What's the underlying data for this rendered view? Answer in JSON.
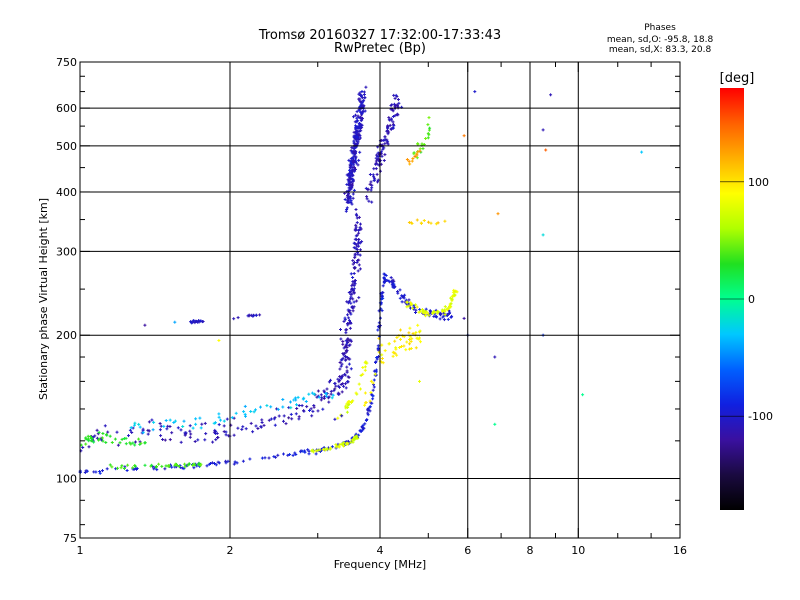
{
  "header": {
    "title": "Tromsø 20160327 17:32:00-17:33:43",
    "subtitle": "RwPretec (Bp)"
  },
  "stats": {
    "title": "Phases",
    "line_o": "mean, sd,O: -95.8, 18.8",
    "line_x": "mean, sd,X:  83.3, 20.8"
  },
  "chart_data": {
    "type": "scatter",
    "title": "Tromsø 20160327 17:32:00-17:33:43",
    "subtitle": "RwPretec (Bp)",
    "xlabel": "Frequency [MHz]",
    "ylabel": "Stationary phase Virtual Height [km]",
    "x_scale": "log",
    "y_scale": "log",
    "xlim": [
      1,
      16
    ],
    "ylim": [
      75,
      750
    ],
    "x_ticks": [
      1,
      2,
      4,
      6,
      8,
      10,
      16
    ],
    "x_tick_labels": [
      "1",
      "2",
      "4",
      "6",
      "8",
      "10",
      "16"
    ],
    "x_minor_ticks": [
      3,
      5,
      7,
      9,
      12,
      14
    ],
    "y_ticks": [
      75,
      100,
      200,
      300,
      400,
      500,
      600,
      750
    ],
    "y_tick_labels": [
      "75",
      "100",
      "200",
      "300",
      "400",
      "500",
      "600",
      "750"
    ],
    "y_minor_ticks": [
      80,
      90,
      120,
      140,
      160,
      180,
      250,
      350,
      450,
      550,
      650,
      700
    ],
    "grid": true,
    "colorbar": {
      "label": "[deg]",
      "range": [
        -180,
        180
      ],
      "ticks": [
        100,
        0,
        -100
      ],
      "tick_labels": [
        "100",
        "0",
        "-100"
      ],
      "colors": [
        "#000000",
        "#1a0a40",
        "#3a10a0",
        "#1020e0",
        "#0060ff",
        "#00c8ff",
        "#00ff90",
        "#20e020",
        "#b0ff00",
        "#ffff00",
        "#ffb000",
        "#ff6000",
        "#ff0000"
      ]
    },
    "series": [
      {
        "kind": "trace",
        "points": [
          [
            1.0,
            104
          ],
          [
            1.1,
            104
          ],
          [
            1.25,
            105
          ],
          [
            1.45,
            105
          ],
          [
            1.6,
            106
          ],
          [
            1.8,
            107
          ],
          [
            2.0,
            108
          ],
          [
            2.3,
            110
          ],
          [
            2.6,
            112
          ],
          [
            2.9,
            114
          ],
          [
            3.1,
            115
          ],
          [
            3.3,
            117
          ],
          [
            3.5,
            120
          ],
          [
            3.65,
            125
          ],
          [
            3.75,
            132
          ],
          [
            3.85,
            145
          ],
          [
            3.92,
            165
          ],
          [
            3.97,
            190
          ],
          [
            4.0,
            215
          ],
          [
            4.05,
            250
          ],
          [
            4.1,
            270
          ]
        ],
        "phase": -95,
        "spread_km": 2,
        "count": 200,
        "scatter": 0.01
      },
      {
        "kind": "trace",
        "points": [
          [
            1.15,
            106
          ],
          [
            1.4,
            106
          ],
          [
            1.6,
            107
          ],
          [
            1.75,
            107
          ]
        ],
        "phase": 35,
        "spread_km": 1.5,
        "count": 40,
        "scatter": 0.01
      },
      {
        "kind": "trace",
        "points": [
          [
            2.9,
            114
          ],
          [
            3.1,
            115
          ],
          [
            3.3,
            117
          ],
          [
            3.5,
            119
          ],
          [
            3.6,
            123
          ]
        ],
        "phase": 75,
        "spread_km": 2,
        "count": 45,
        "scatter": 0.01
      },
      {
        "kind": "trace",
        "points": [
          [
            1.0,
            120
          ],
          [
            1.1,
            123
          ],
          [
            1.3,
            126
          ],
          [
            1.5,
            125
          ],
          [
            1.8,
            124
          ],
          [
            2.0,
            127
          ],
          [
            2.3,
            130
          ],
          [
            2.6,
            135
          ],
          [
            2.9,
            142
          ],
          [
            3.1,
            150
          ],
          [
            3.3,
            158
          ],
          [
            3.5,
            165
          ]
        ],
        "phase": -110,
        "spread_km": 10,
        "count": 170,
        "scatter": 0.02
      },
      {
        "kind": "trace",
        "points": [
          [
            1.0,
            118
          ],
          [
            1.05,
            120
          ],
          [
            1.1,
            122
          ],
          [
            1.2,
            120
          ],
          [
            1.35,
            118
          ]
        ],
        "phase": 30,
        "spread_km": 4,
        "count": 40,
        "scatter": 0.02
      },
      {
        "kind": "trace",
        "points": [
          [
            1.25,
            128
          ],
          [
            1.5,
            130
          ],
          [
            1.75,
            132
          ],
          [
            2.0,
            135
          ],
          [
            2.3,
            140
          ],
          [
            2.6,
            145
          ],
          [
            2.9,
            148
          ],
          [
            3.3,
            152
          ]
        ],
        "phase": -30,
        "spread_km": 6,
        "count": 60,
        "scatter": 0.03
      },
      {
        "kind": "trace",
        "points": [
          [
            3.3,
            135
          ],
          [
            3.5,
            145
          ],
          [
            3.65,
            160
          ],
          [
            3.75,
            178
          ]
        ],
        "phase": 80,
        "spread_km": 5,
        "count": 30,
        "scatter": 0.02
      },
      {
        "kind": "trace",
        "points": [
          [
            3.3,
            160
          ],
          [
            3.4,
            180
          ],
          [
            3.45,
            200
          ],
          [
            3.5,
            230
          ],
          [
            3.55,
            260
          ],
          [
            3.6,
            300
          ],
          [
            3.62,
            320
          ],
          [
            3.6,
            350
          ]
        ],
        "phase": -110,
        "spread_km": 45,
        "count": 170,
        "scatter": 0.025
      },
      {
        "kind": "trace",
        "points": [
          [
            3.45,
            390
          ],
          [
            3.5,
            430
          ],
          [
            3.55,
            480
          ],
          [
            3.6,
            530
          ],
          [
            3.65,
            580
          ],
          [
            3.7,
            625
          ]
        ],
        "phase": -105,
        "spread_km": 55,
        "count": 280,
        "scatter": 0.025
      },
      {
        "kind": "trace",
        "points": [
          [
            3.8,
            390
          ],
          [
            3.95,
            450
          ],
          [
            4.1,
            520
          ],
          [
            4.25,
            580
          ],
          [
            4.35,
            630
          ]
        ],
        "phase": -110,
        "spread_km": 40,
        "count": 120,
        "scatter": 0.03
      },
      {
        "kind": "trace",
        "points": [
          [
            4.1,
            270
          ],
          [
            4.3,
            250
          ],
          [
            4.5,
            235
          ],
          [
            4.8,
            225
          ],
          [
            5.0,
            222
          ],
          [
            5.2,
            221
          ],
          [
            5.6,
            220
          ]
        ],
        "phase": -100,
        "spread_km": 7,
        "count": 90,
        "scatter": 0.01
      },
      {
        "kind": "trace",
        "points": [
          [
            4.5,
            235
          ],
          [
            4.8,
            225
          ],
          [
            5.0,
            222
          ],
          [
            5.3,
            222
          ],
          [
            5.5,
            228
          ],
          [
            5.6,
            240
          ],
          [
            5.7,
            250
          ]
        ],
        "phase": 80,
        "spread_km": 5,
        "count": 70,
        "scatter": 0.01
      },
      {
        "kind": "trace",
        "points": [
          [
            3.75,
            140
          ],
          [
            3.85,
            160
          ],
          [
            3.95,
            180
          ],
          [
            4.1,
            190
          ],
          [
            4.3,
            185
          ],
          [
            4.5,
            200
          ],
          [
            4.7,
            195
          ],
          [
            4.8,
            205
          ]
        ],
        "phase": 95,
        "spread_km": 15,
        "count": 60,
        "scatter": 0.03
      },
      {
        "kind": "trace",
        "points": [
          [
            4.3,
            350
          ],
          [
            4.6,
            345
          ],
          [
            4.9,
            345
          ],
          [
            5.5,
            345
          ]
        ],
        "phase": 110,
        "spread_km": 5,
        "count": 12,
        "scatter": 0.02
      },
      {
        "kind": "trace",
        "points": [
          [
            4.55,
            470
          ],
          [
            4.8,
            490
          ],
          [
            5.0,
            520
          ],
          [
            5.0,
            560
          ]
        ],
        "phase": 40,
        "spread_km": 20,
        "count": 20,
        "scatter": 0.02
      },
      {
        "kind": "trace",
        "points": [
          [
            4.5,
            460
          ],
          [
            4.7,
            470
          ],
          [
            4.9,
            500
          ]
        ],
        "phase": 130,
        "spread_km": 10,
        "count": 10,
        "scatter": 0.02
      },
      {
        "kind": "trace",
        "points": [
          [
            1.65,
            213
          ],
          [
            1.75,
            214
          ],
          [
            1.85,
            215
          ]
        ],
        "phase": -100,
        "spread_km": 2,
        "count": 18,
        "scatter": 0.01
      },
      {
        "kind": "trace",
        "points": [
          [
            2.0,
            217
          ],
          [
            2.15,
            220
          ],
          [
            2.3,
            220
          ]
        ],
        "phase": -110,
        "spread_km": 2,
        "count": 12,
        "scatter": 0.01
      },
      {
        "kind": "scatter",
        "points": [
          [
            1.35,
            210,
            -120
          ],
          [
            1.55,
            213,
            -40
          ],
          [
            1.9,
            195,
            90
          ],
          [
            5.9,
            217,
            -120
          ],
          [
            6.0,
            200,
            -80
          ],
          [
            6.8,
            180,
            -110
          ],
          [
            6.8,
            130,
            0
          ],
          [
            8.5,
            200,
            -80
          ],
          [
            6.2,
            650,
            -100
          ],
          [
            8.5,
            540,
            -110
          ],
          [
            8.6,
            490,
            150
          ],
          [
            8.8,
            640,
            -110
          ],
          [
            8.5,
            325,
            -20
          ],
          [
            13.4,
            485,
            -30
          ],
          [
            10.2,
            150,
            0
          ],
          [
            6.9,
            360,
            130
          ],
          [
            5.9,
            525,
            140
          ],
          [
            4.8,
            160,
            80
          ]
        ]
      }
    ]
  }
}
